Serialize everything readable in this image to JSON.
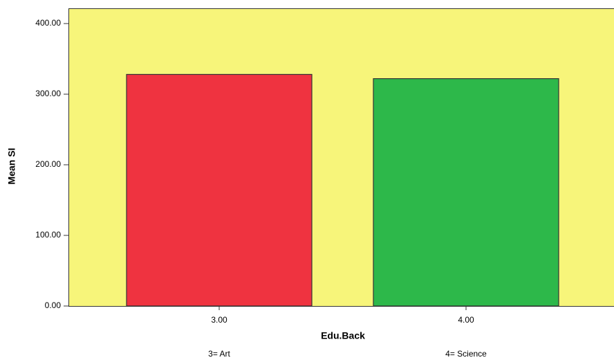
{
  "chart_data": {
    "type": "bar",
    "categories": [
      "3.00",
      "4.00"
    ],
    "values": [
      328,
      322
    ],
    "colors": [
      "#ef3340",
      "#2db84a"
    ],
    "x_label": "Edu.Back",
    "y_label": "Mean SI",
    "annotations": [
      "3= Art",
      "4= Science"
    ],
    "ylim": [
      0,
      421.6
    ],
    "yticks": [
      {
        "value": 0,
        "label": "0.00"
      },
      {
        "value": 100,
        "label": "100.00"
      },
      {
        "value": 200,
        "label": "200.00"
      },
      {
        "value": 300,
        "label": "300.00"
      },
      {
        "value": 400,
        "label": "400.00"
      }
    ],
    "background": "#f7f57a"
  }
}
